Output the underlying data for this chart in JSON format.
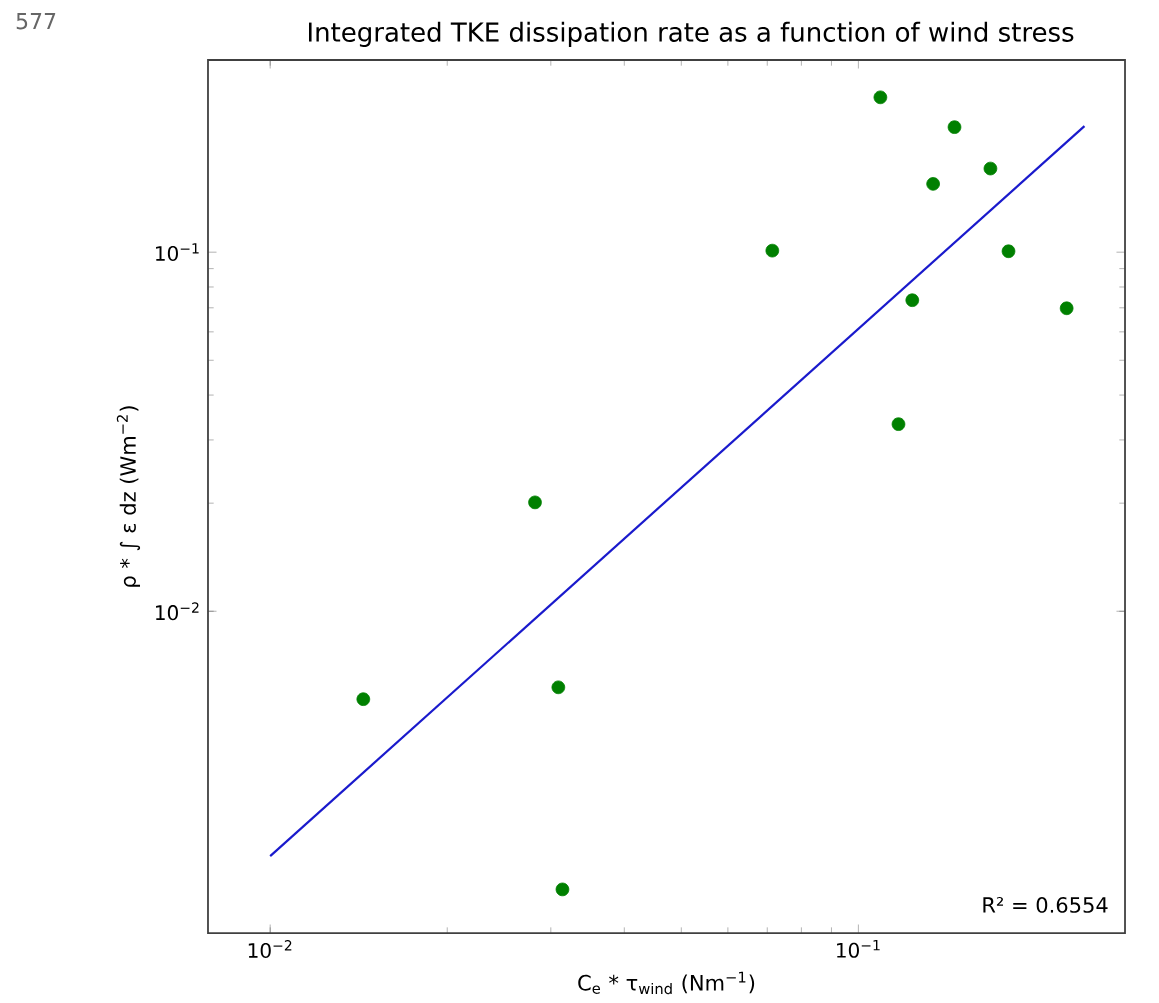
{
  "chart_data": {
    "type": "scatter",
    "title": "Integrated TKE dissipation rate as a function of wind stress",
    "xlabel": "C$_{e}$ * τ$_{wind}$ (Nm$^{−1}$)",
    "ylabel": "ρ * ∫ ε dz (Wm$^{−2}$)",
    "log": "xy",
    "xlim": [
      0.00784,
      0.284
    ],
    "ylim": [
      0.00127,
      0.343
    ],
    "xticks": [
      {
        "value": 0.01,
        "label": "10$^{−2}$"
      },
      {
        "value": 0.1,
        "label": "10$^{−1}$"
      }
    ],
    "yticks": [
      {
        "value": 0.01,
        "label": "10$^{−2}$"
      },
      {
        "value": 0.1,
        "label": "10$^{−1}$"
      }
    ],
    "series": [
      {
        "type": "scatter",
        "marker": "circle",
        "color": "#008000",
        "x": [
          0.0144,
          0.0282,
          0.0309,
          0.0314,
          0.0714,
          0.109,
          0.117,
          0.1235,
          0.134,
          0.1457,
          0.1677,
          0.18,
          0.226
        ],
        "values": [
          0.00569,
          0.0201,
          0.00614,
          0.00168,
          0.101,
          0.27,
          0.0332,
          0.0735,
          0.155,
          0.223,
          0.171,
          0.1006,
          0.0698
        ]
      },
      {
        "type": "line",
        "color": "#1a1acc",
        "x": [
          0.01,
          0.2423
        ],
        "values": [
          0.00208,
          0.2244
        ]
      }
    ],
    "annotations": [
      "577",
      "R² = 0.6554"
    ]
  }
}
